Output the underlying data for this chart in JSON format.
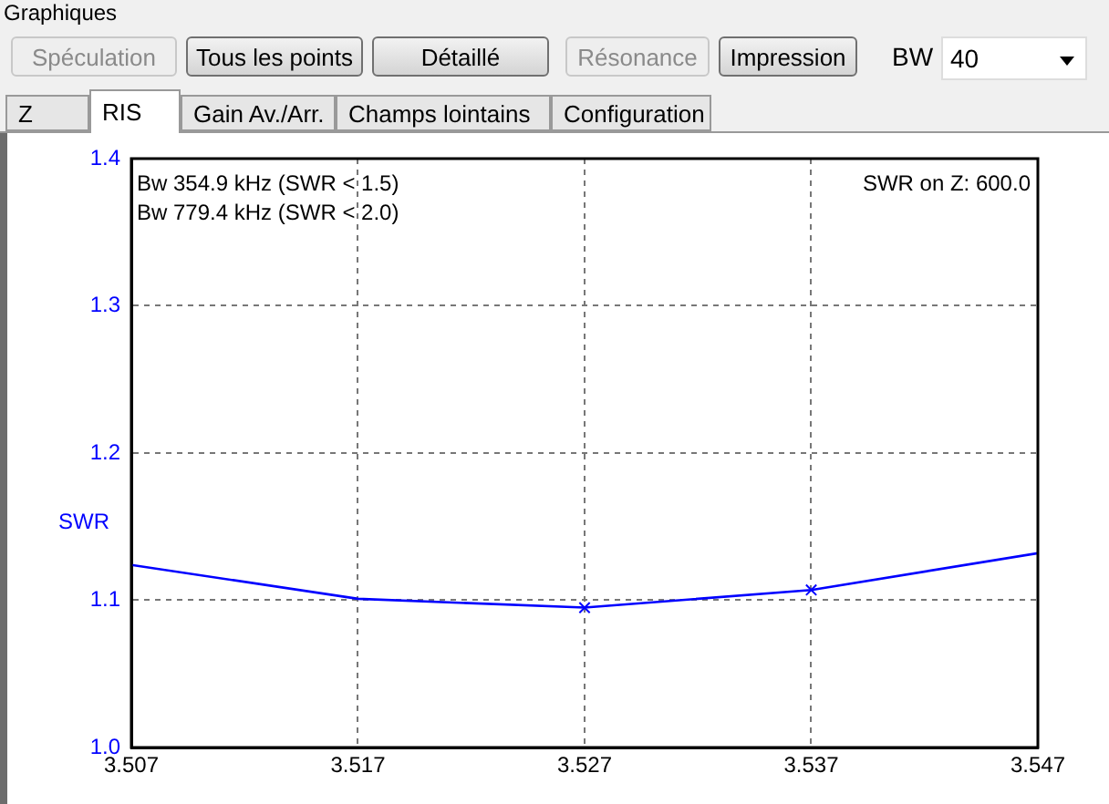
{
  "chart_data": {
    "type": "line",
    "title": "Graphiques",
    "ylabel": "SWR",
    "x": [
      3.507,
      3.517,
      3.527,
      3.537,
      3.547
    ],
    "series": [
      {
        "color": "#0000ff",
        "values": [
          1.124,
          1.101,
          1.095,
          1.107,
          1.132
        ],
        "marker": "none"
      },
      {
        "type": "scatter",
        "color": "#0000ff",
        "x": [
          3.527,
          3.537
        ],
        "values": [
          1.095,
          1.107
        ],
        "marker": "cross"
      }
    ],
    "xlim": [
      3.507,
      3.547
    ],
    "xticks": [
      3.507,
      3.517,
      3.527,
      3.537,
      3.547
    ],
    "ylim": [
      1.0,
      1.4
    ],
    "yticks": [
      {
        "value": 1.0,
        "label": "1.0"
      },
      1.1,
      1.2,
      1.3,
      1.4
    ],
    "grid": true,
    "legend": false,
    "line_style": "solid",
    "annotations": [
      "Bw 354.9 kHz (SWR < 1.5)",
      "Bw 779.4 kHz (SWR < 2.0)",
      "SWR on Z: 600.0",
      "Spéculation",
      "Tous les points",
      "Détaillé",
      "Résonance",
      "Impression",
      "BW",
      "40",
      "Z",
      "RIS",
      "Gain Av./Arr.",
      "Champs lointains",
      "Configuration"
    ]
  }
}
